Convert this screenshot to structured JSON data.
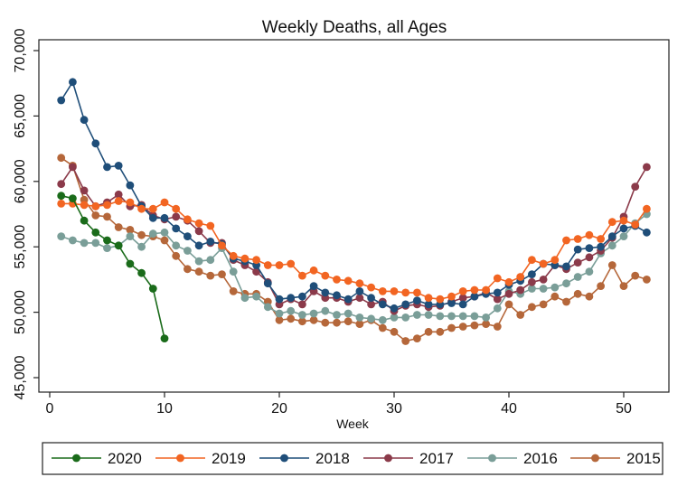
{
  "chart_data": {
    "type": "line",
    "title": "Weekly Deaths, all Ages",
    "xlabel": "Week",
    "ylabel": "",
    "xlim": [
      0,
      53
    ],
    "ylim": [
      45000,
      70000
    ],
    "xticks": [
      0,
      10,
      20,
      30,
      40,
      50
    ],
    "yticks": [
      45000,
      50000,
      55000,
      60000,
      65000,
      70000
    ],
    "xtick_labels": [
      "0",
      "10",
      "20",
      "30",
      "40",
      "50"
    ],
    "ytick_labels": [
      "45,000",
      "50,000",
      "55,000",
      "60,000",
      "65,000",
      "70,000"
    ],
    "grid": false,
    "legend_position": "bottom",
    "series": [
      {
        "name": "2020",
        "color": "#1a6b1a",
        "values": [
          58900,
          58700,
          57000,
          56100,
          55500,
          55100,
          53700,
          53000,
          51800,
          48000
        ]
      },
      {
        "name": "2019",
        "color": "#f26522",
        "values": [
          58300,
          58300,
          58200,
          58100,
          58200,
          58500,
          58400,
          57900,
          57900,
          58400,
          57900,
          57100,
          56800,
          56600,
          55100,
          54300,
          54100,
          54000,
          53600,
          53600,
          53700,
          52800,
          53200,
          52800,
          52500,
          52400,
          52200,
          51900,
          51600,
          51600,
          51500,
          51500,
          51100,
          51000,
          51200,
          51600,
          51700,
          51700,
          52600,
          52300,
          52700,
          54000,
          53700,
          54000,
          55500,
          55600,
          55900,
          55600,
          56900,
          57000,
          56700,
          57900
        ]
      },
      {
        "name": "2018",
        "color": "#1f4e79",
        "values": [
          66200,
          67600,
          64700,
          62900,
          61100,
          61200,
          59700,
          58100,
          57200,
          57200,
          56400,
          55800,
          55100,
          55400,
          55200,
          54100,
          53900,
          53600,
          52200,
          51000,
          51100,
          51200,
          52000,
          51500,
          51300,
          51000,
          51600,
          51100,
          50600,
          50300,
          50600,
          50900,
          50600,
          50600,
          50700,
          50600,
          51200,
          51400,
          51500,
          52100,
          52400,
          52900,
          53700,
          53600,
          53500,
          54800,
          54900,
          55000,
          55800,
          56400,
          56600,
          56100
        ]
      },
      {
        "name": "2017",
        "color": "#8b3a4a",
        "values": [
          59800,
          61100,
          59300,
          58100,
          58400,
          59000,
          58100,
          58200,
          57400,
          57100,
          57300,
          57000,
          56200,
          55300,
          55300,
          54000,
          53600,
          53100,
          52300,
          50600,
          51000,
          50600,
          51600,
          51100,
          51100,
          50800,
          51100,
          50600,
          50800,
          50100,
          50500,
          50600,
          50400,
          50500,
          50800,
          51100,
          51200,
          51500,
          51000,
          51400,
          51700,
          52300,
          52500,
          53600,
          53300,
          53800,
          54200,
          54700,
          55700,
          57300,
          59600,
          61100
        ]
      },
      {
        "name": "2016",
        "color": "#7a9e98",
        "values": [
          55800,
          55500,
          55300,
          55300,
          54900,
          55100,
          55800,
          55000,
          56000,
          56100,
          55100,
          54700,
          53900,
          54000,
          54900,
          53100,
          51100,
          51200,
          50400,
          49900,
          50100,
          49800,
          49900,
          50100,
          49800,
          49900,
          49600,
          49500,
          49400,
          49600,
          49600,
          49800,
          49800,
          49700,
          49700,
          49700,
          49700,
          49600,
          50300,
          51600,
          51400,
          51800,
          51800,
          51900,
          52200,
          52700,
          53100,
          54500,
          55100,
          55800,
          56800,
          57500
        ]
      },
      {
        "name": "2015",
        "color": "#b5673a",
        "values": [
          61800,
          61200,
          58600,
          57400,
          57300,
          56500,
          56300,
          55900,
          55800,
          55500,
          54300,
          53300,
          53100,
          52800,
          52900,
          51600,
          51400,
          51400,
          50800,
          49400,
          49500,
          49300,
          49400,
          49200,
          49200,
          49300,
          49100,
          49400,
          48800,
          48500,
          47800,
          48000,
          48500,
          48500,
          48800,
          48900,
          49000,
          49100,
          48900,
          50600,
          49800,
          50400,
          50600,
          51200,
          50800,
          51400,
          51200,
          52000,
          53600,
          52000,
          52800,
          52500
        ]
      }
    ]
  }
}
